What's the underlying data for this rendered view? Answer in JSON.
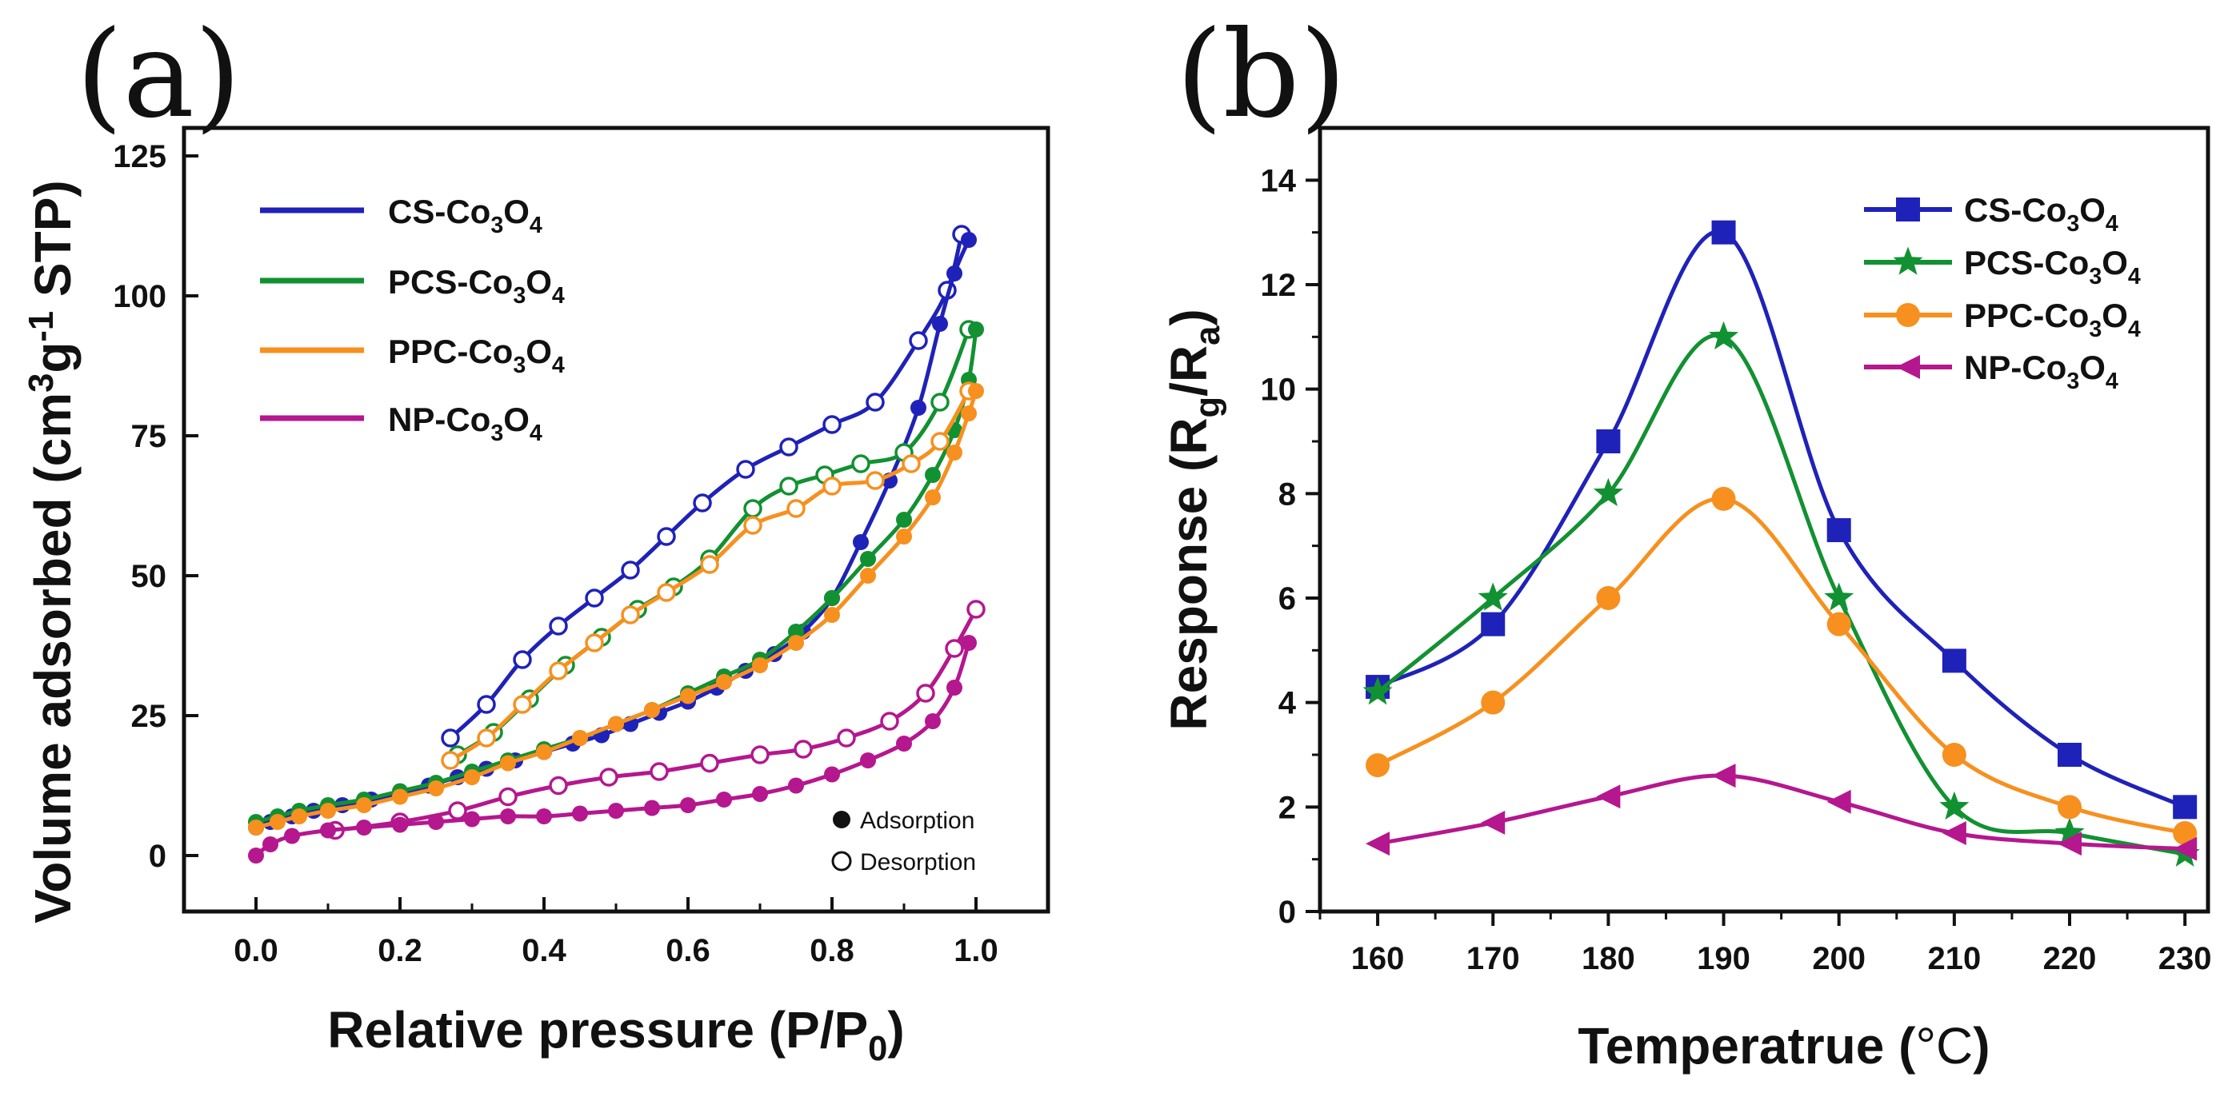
{
  "chart_data": [
    {
      "id": "a",
      "type": "line",
      "panel_label": "(a)",
      "title": "",
      "xlabel": "Relative pressure (P/P0)",
      "xlabel_parts": {
        "main": "Relative pressure (P/P",
        "sub": "0",
        "close": ")"
      },
      "ylabel": "Volume adsorbed (cm3g-1 STP)",
      "ylabel_parts": {
        "a": "Volume adsorbed (cm",
        "sup1": "3",
        "b": "g",
        "sup2": "-1",
        "c": " STP)"
      },
      "xlim": [
        -0.1,
        1.1
      ],
      "ylim": [
        -10,
        130
      ],
      "xticks": [
        "0.0",
        "0.2",
        "0.4",
        "0.6",
        "0.8",
        "1.0"
      ],
      "yticks": [
        "0",
        "25",
        "50",
        "75",
        "100",
        "125"
      ],
      "legend_position": "top-left",
      "marker_legend": [
        "Adsorption",
        "Desorption"
      ],
      "series": [
        {
          "name": "CS-Co3O4",
          "base": "CS-Co",
          "s1": "3",
          "mid": "O",
          "s2": "4",
          "color": "#1f22b8",
          "adsorption": {
            "x": [
              0.0,
              0.02,
              0.05,
              0.08,
              0.12,
              0.16,
              0.2,
              0.24,
              0.28,
              0.32,
              0.36,
              0.4,
              0.44,
              0.48,
              0.52,
              0.56,
              0.6,
              0.64,
              0.68,
              0.72,
              0.76,
              0.8,
              0.84,
              0.88,
              0.92,
              0.95,
              0.97,
              0.99
            ],
            "y": [
              5,
              6,
              7,
              8,
              9,
              10,
              11,
              12.5,
              14,
              15.5,
              17,
              18.5,
              20,
              21.5,
              23.5,
              25.5,
              27.5,
              30,
              33,
              36,
              40,
              46,
              56,
              67,
              80,
              95,
              104,
              110
            ]
          },
          "desorption": {
            "x": [
              0.27,
              0.32,
              0.37,
              0.42,
              0.47,
              0.52,
              0.57,
              0.62,
              0.68,
              0.74,
              0.8,
              0.86,
              0.92,
              0.96,
              0.98
            ],
            "y": [
              21,
              27,
              35,
              41,
              46,
              51,
              57,
              63,
              69,
              73,
              77,
              81,
              92,
              101,
              111
            ]
          }
        },
        {
          "name": "PCS-Co3O4",
          "base": "PCS-Co",
          "s1": "3",
          "mid": "O",
          "s2": "4",
          "color": "#129132",
          "adsorption": {
            "x": [
              0.0,
              0.03,
              0.06,
              0.1,
              0.15,
              0.2,
              0.25,
              0.3,
              0.35,
              0.4,
              0.45,
              0.5,
              0.55,
              0.6,
              0.65,
              0.7,
              0.75,
              0.8,
              0.85,
              0.9,
              0.94,
              0.97,
              0.99,
              1.0
            ],
            "y": [
              6,
              7,
              8,
              9,
              10,
              11.5,
              13,
              15,
              17,
              19,
              21,
              23.5,
              26,
              29,
              32,
              35,
              40,
              46,
              53,
              60,
              68,
              76,
              85,
              94
            ]
          },
          "desorption": {
            "x": [
              0.28,
              0.33,
              0.38,
              0.43,
              0.48,
              0.53,
              0.58,
              0.63,
              0.69,
              0.74,
              0.79,
              0.84,
              0.9,
              0.95,
              0.99
            ],
            "y": [
              18,
              22,
              28,
              34,
              39,
              44,
              48,
              53,
              62,
              66,
              68,
              70,
              72,
              81,
              94
            ]
          }
        },
        {
          "name": "PPC-Co3O4",
          "base": "PPC-Co",
          "s1": "3",
          "mid": "O",
          "s2": "4",
          "color": "#f7901e",
          "adsorption": {
            "x": [
              0.0,
              0.03,
              0.06,
              0.1,
              0.15,
              0.2,
              0.25,
              0.3,
              0.35,
              0.4,
              0.45,
              0.5,
              0.55,
              0.6,
              0.65,
              0.7,
              0.75,
              0.8,
              0.85,
              0.9,
              0.94,
              0.97,
              0.99,
              1.0
            ],
            "y": [
              5,
              6,
              7,
              8,
              9,
              10.5,
              12,
              14,
              16.5,
              18.5,
              21,
              23.5,
              26,
              28.5,
              31,
              34,
              38,
              43,
              50,
              57,
              64,
              72,
              79,
              83
            ]
          },
          "desorption": {
            "x": [
              0.27,
              0.32,
              0.37,
              0.42,
              0.47,
              0.52,
              0.57,
              0.63,
              0.69,
              0.75,
              0.8,
              0.86,
              0.91,
              0.95,
              0.99
            ],
            "y": [
              17,
              21,
              27,
              33,
              38,
              43,
              47,
              52,
              59,
              62,
              66,
              67,
              70,
              74,
              83
            ]
          }
        },
        {
          "name": "NP-Co3O4",
          "base": "NP-Co",
          "s1": "3",
          "mid": "O",
          "s2": "4",
          "color": "#b5178e",
          "adsorption": {
            "x": [
              0.0,
              0.02,
              0.05,
              0.1,
              0.15,
              0.2,
              0.25,
              0.3,
              0.35,
              0.4,
              0.45,
              0.5,
              0.55,
              0.6,
              0.65,
              0.7,
              0.75,
              0.8,
              0.85,
              0.9,
              0.94,
              0.97,
              0.99
            ],
            "y": [
              0,
              2,
              3.5,
              4.5,
              5,
              5.5,
              6,
              6.5,
              7,
              7,
              7.5,
              8,
              8.5,
              9,
              10,
              11,
              12.5,
              14.5,
              17,
              20,
              24,
              30,
              38
            ]
          },
          "desorption": {
            "x": [
              0.11,
              0.2,
              0.28,
              0.35,
              0.42,
              0.49,
              0.56,
              0.63,
              0.7,
              0.76,
              0.82,
              0.88,
              0.93,
              0.97,
              1.0
            ],
            "y": [
              4.5,
              6,
              8,
              10.5,
              12.5,
              14,
              15,
              16.5,
              18,
              19,
              21,
              24,
              29,
              37,
              44
            ]
          }
        }
      ]
    },
    {
      "id": "b",
      "type": "line",
      "panel_label": "(b)",
      "title": "",
      "xlabel": "Temperatrue (°C)",
      "xlabel_parts": {
        "main": "Temperatrue (",
        "unit": "°C",
        "close": ")"
      },
      "ylabel": "Response (Rg/Ra)",
      "ylabel_parts": {
        "a": "Response (R",
        "sub1": "g",
        "b": "/R",
        "sub2": "a",
        "c": ")"
      },
      "xlim": [
        155,
        232
      ],
      "ylim": [
        0,
        15
      ],
      "xticks": [
        "160",
        "170",
        "180",
        "190",
        "200",
        "210",
        "220",
        "230"
      ],
      "yticks": [
        "0",
        "2",
        "4",
        "6",
        "8",
        "10",
        "12",
        "14"
      ],
      "legend_position": "top-right",
      "x": [
        160,
        170,
        180,
        190,
        200,
        210,
        220,
        230
      ],
      "series": [
        {
          "name": "CS-Co3O4",
          "base": "CS-Co",
          "s1": "3",
          "mid": "O",
          "s2": "4",
          "color": "#1f22b8",
          "marker": "square",
          "values": [
            4.3,
            5.5,
            9.0,
            13.0,
            7.3,
            4.8,
            3.0,
            2.0
          ]
        },
        {
          "name": "PCS-Co3O4",
          "base": "PCS-Co",
          "s1": "3",
          "mid": "O",
          "s2": "4",
          "color": "#129132",
          "marker": "star",
          "values": [
            4.2,
            6.0,
            8.0,
            11.0,
            6.0,
            2.0,
            1.5,
            1.1
          ]
        },
        {
          "name": "PPC-Co3O4",
          "base": "PPC-Co",
          "s1": "3",
          "mid": "O",
          "s2": "4",
          "color": "#f7901e",
          "marker": "circle",
          "values": [
            2.8,
            4.0,
            6.0,
            7.9,
            5.5,
            3.0,
            2.0,
            1.5
          ]
        },
        {
          "name": "NP-Co3O4",
          "base": "NP-Co",
          "s1": "3",
          "mid": "O",
          "s2": "4",
          "color": "#b5178e",
          "marker": "triangle-left",
          "values": [
            1.3,
            1.7,
            2.2,
            2.6,
            2.1,
            1.5,
            1.3,
            1.2
          ]
        }
      ]
    }
  ]
}
